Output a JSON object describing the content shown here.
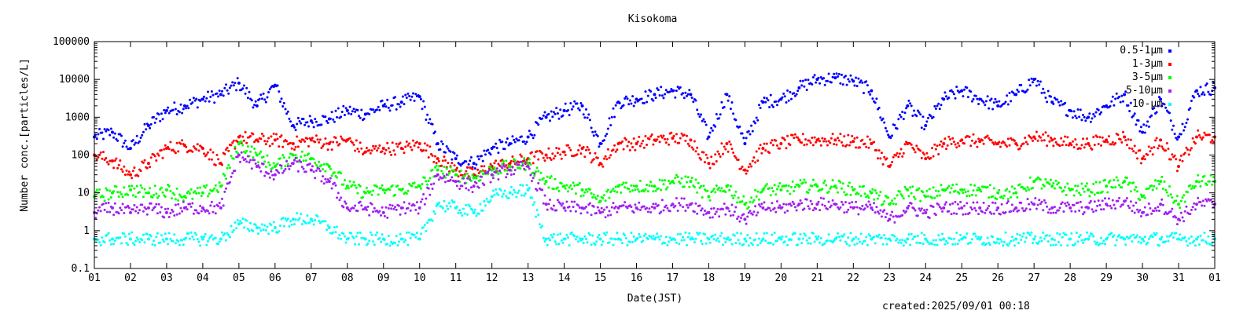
{
  "chart_data": {
    "type": "scatter",
    "title": "Kisokoma",
    "xlabel": "Date(JST)",
    "ylabel": "Number conc.[particles/L]",
    "footer": "created:2025/09/01 00:18",
    "y_scale": "log",
    "ylim": [
      0.1,
      100000
    ],
    "xlim": [
      1,
      32
    ],
    "y_tick_labels": [
      "0.1",
      "1",
      "10",
      "100",
      "1000",
      "10000",
      "100000"
    ],
    "x_tick_labels": [
      "01",
      "02",
      "03",
      "04",
      "05",
      "06",
      "07",
      "08",
      "09",
      "10",
      "11",
      "12",
      "13",
      "14",
      "15",
      "16",
      "17",
      "18",
      "19",
      "20",
      "21",
      "22",
      "23",
      "24",
      "25",
      "26",
      "27",
      "28",
      "29",
      "30",
      "31",
      "01"
    ],
    "legend_position": "top-right",
    "series": [
      {
        "name": "0.5-1μm",
        "color": "#0000ff",
        "x": [
          1.0,
          1.5,
          2.0,
          2.5,
          3.0,
          3.5,
          4.0,
          4.5,
          5.0,
          5.5,
          6.0,
          6.5,
          7.0,
          7.5,
          8.0,
          8.5,
          9.0,
          9.5,
          10.0,
          10.5,
          11.0,
          11.5,
          12.0,
          12.5,
          13.0,
          13.5,
          14.0,
          14.5,
          15.0,
          15.5,
          16.0,
          16.5,
          17.0,
          17.5,
          18.0,
          18.5,
          19.0,
          19.5,
          20.0,
          20.5,
          21.0,
          21.5,
          22.0,
          22.5,
          23.0,
          23.5,
          24.0,
          24.5,
          25.0,
          25.5,
          26.0,
          26.5,
          27.0,
          27.5,
          28.0,
          28.5,
          29.0,
          29.5,
          30.0,
          30.5,
          31.0,
          31.5,
          32.0
        ],
        "y": [
          300,
          400,
          150,
          600,
          1500,
          2000,
          3000,
          4000,
          8000,
          2000,
          7000,
          600,
          800,
          900,
          1500,
          1200,
          2000,
          2500,
          3500,
          200,
          80,
          60,
          150,
          200,
          300,
          1000,
          1500,
          2000,
          200,
          2500,
          3000,
          4000,
          5000,
          4000,
          300,
          4000,
          200,
          2500,
          3000,
          6000,
          10000,
          11000,
          9000,
          5000,
          300,
          2000,
          600,
          3000,
          5000,
          3000,
          2000,
          4000,
          10000,
          2500,
          1500,
          1000,
          2000,
          4000,
          400,
          3000,
          300,
          5000,
          6000
        ]
      },
      {
        "name": "1-3μm",
        "color": "#ff0000",
        "x": [
          1.0,
          1.5,
          2.0,
          2.5,
          3.0,
          3.5,
          4.0,
          4.5,
          5.0,
          5.5,
          6.0,
          6.5,
          7.0,
          7.5,
          8.0,
          8.5,
          9.0,
          9.5,
          10.0,
          10.5,
          11.0,
          11.5,
          12.0,
          12.5,
          13.0,
          13.5,
          14.0,
          14.5,
          15.0,
          15.5,
          16.0,
          16.5,
          17.0,
          17.5,
          18.0,
          18.5,
          19.0,
          19.5,
          20.0,
          20.5,
          21.0,
          21.5,
          22.0,
          22.5,
          23.0,
          23.5,
          24.0,
          24.5,
          25.0,
          25.5,
          26.0,
          26.5,
          27.0,
          27.5,
          28.0,
          28.5,
          29.0,
          29.5,
          30.0,
          30.5,
          31.0,
          31.5,
          32.0
        ],
        "y": [
          100,
          70,
          30,
          60,
          150,
          180,
          150,
          60,
          300,
          250,
          250,
          200,
          250,
          200,
          250,
          120,
          150,
          150,
          200,
          80,
          40,
          30,
          50,
          60,
          80,
          100,
          120,
          150,
          60,
          200,
          200,
          250,
          280,
          250,
          60,
          200,
          40,
          150,
          200,
          250,
          250,
          250,
          230,
          200,
          50,
          200,
          80,
          200,
          250,
          230,
          200,
          200,
          300,
          250,
          200,
          200,
          250,
          300,
          80,
          250,
          50,
          300,
          300
        ]
      },
      {
        "name": "3-5μm",
        "color": "#00ff00",
        "x": [
          1.0,
          1.5,
          2.0,
          2.5,
          3.0,
          3.5,
          4.0,
          4.5,
          5.0,
          5.5,
          6.0,
          6.5,
          7.0,
          7.5,
          8.0,
          8.5,
          9.0,
          9.5,
          10.0,
          10.5,
          11.0,
          11.5,
          12.0,
          12.5,
          13.0,
          13.5,
          14.0,
          14.5,
          15.0,
          15.5,
          16.0,
          16.5,
          17.0,
          17.5,
          18.0,
          18.5,
          19.0,
          19.5,
          20.0,
          20.5,
          21.0,
          21.5,
          22.0,
          22.5,
          23.0,
          23.5,
          24.0,
          24.5,
          25.0,
          25.5,
          26.0,
          26.5,
          27.0,
          27.5,
          28.0,
          28.5,
          29.0,
          29.5,
          30.0,
          30.5,
          31.0,
          31.5,
          32.0
        ],
        "y": [
          8,
          10,
          12,
          10,
          12,
          8,
          10,
          15,
          200,
          100,
          50,
          100,
          80,
          50,
          15,
          10,
          12,
          12,
          15,
          40,
          30,
          25,
          40,
          50,
          60,
          20,
          15,
          12,
          6,
          15,
          15,
          15,
          20,
          20,
          8,
          15,
          5,
          12,
          12,
          15,
          15,
          15,
          12,
          10,
          5,
          12,
          8,
          12,
          12,
          12,
          10,
          10,
          20,
          15,
          12,
          12,
          15,
          20,
          8,
          20,
          5,
          20,
          20
        ]
      },
      {
        "name": "5-10μm",
        "color": "#a020f0",
        "x": [
          1.0,
          1.5,
          2.0,
          2.5,
          3.0,
          3.5,
          4.0,
          4.5,
          5.0,
          5.5,
          6.0,
          6.5,
          7.0,
          7.5,
          8.0,
          8.5,
          9.0,
          9.5,
          10.0,
          10.5,
          11.0,
          11.5,
          12.0,
          12.5,
          13.0,
          13.5,
          14.0,
          14.5,
          15.0,
          15.5,
          16.0,
          16.5,
          17.0,
          17.5,
          18.0,
          18.5,
          19.0,
          19.5,
          20.0,
          20.5,
          21.0,
          21.5,
          22.0,
          22.5,
          23.0,
          23.5,
          24.0,
          24.5,
          25.0,
          25.5,
          26.0,
          26.5,
          27.0,
          27.5,
          28.0,
          28.5,
          29.0,
          29.5,
          30.0,
          30.5,
          31.0,
          31.5,
          32.0
        ],
        "y": [
          3,
          4,
          3,
          4,
          3,
          4,
          4,
          4,
          100,
          50,
          30,
          60,
          40,
          20,
          4,
          4,
          3,
          4,
          4,
          30,
          20,
          15,
          30,
          40,
          50,
          5,
          4,
          4,
          3,
          4,
          4,
          4,
          5,
          5,
          3,
          4,
          2,
          4,
          4,
          5,
          5,
          5,
          4,
          4,
          2,
          4,
          3,
          4,
          4,
          4,
          4,
          4,
          5,
          4,
          4,
          4,
          5,
          6,
          3,
          5,
          2,
          5,
          5
        ]
      },
      {
        "name": "10-μm",
        "color": "#00ffff",
        "x": [
          1.0,
          1.5,
          2.0,
          2.5,
          3.0,
          3.5,
          4.0,
          4.5,
          5.0,
          5.5,
          6.0,
          6.5,
          7.0,
          7.5,
          8.0,
          8.5,
          9.0,
          9.5,
          10.0,
          10.5,
          11.0,
          11.5,
          12.0,
          12.5,
          13.0,
          13.5,
          14.0,
          14.5,
          15.0,
          15.5,
          16.0,
          16.5,
          17.0,
          17.5,
          18.0,
          18.5,
          19.0,
          19.5,
          20.0,
          20.5,
          21.0,
          21.5,
          22.0,
          22.5,
          23.0,
          23.5,
          24.0,
          24.5,
          25.0,
          25.5,
          26.0,
          26.5,
          27.0,
          27.5,
          28.0,
          28.5,
          29.0,
          29.5,
          30.0,
          30.5,
          31.0,
          31.5,
          32.0
        ],
        "y": [
          0.6,
          0.6,
          0.6,
          0.6,
          0.6,
          0.6,
          0.6,
          0.6,
          1.5,
          1.2,
          1.2,
          2,
          2,
          1.2,
          0.6,
          0.6,
          0.6,
          0.6,
          0.6,
          5,
          4,
          3,
          8,
          10,
          12,
          0.6,
          0.6,
          0.6,
          0.6,
          0.6,
          0.6,
          0.6,
          0.6,
          0.6,
          0.6,
          0.6,
          0.6,
          0.6,
          0.6,
          0.6,
          0.6,
          0.6,
          0.6,
          0.6,
          0.6,
          0.6,
          0.6,
          0.6,
          0.6,
          0.6,
          0.6,
          0.6,
          0.6,
          0.6,
          0.6,
          0.6,
          0.6,
          0.6,
          0.6,
          0.6,
          0.6,
          0.6,
          0.6
        ]
      }
    ]
  }
}
